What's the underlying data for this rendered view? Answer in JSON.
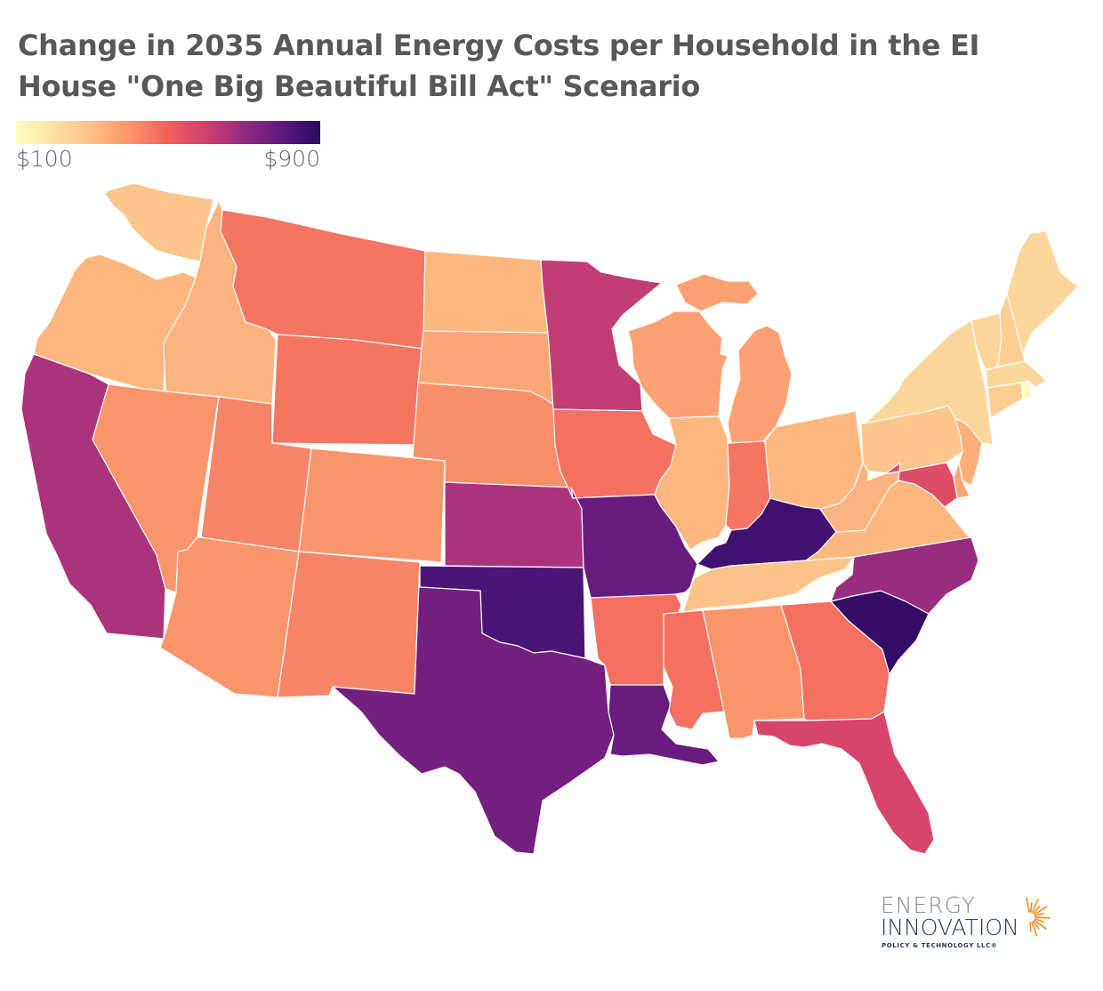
{
  "title": {
    "line1": "Change in 2035 Annual Energy Costs per Household in the EI",
    "line2": "House \"One Big Beautiful Bill Act\" Scenario"
  },
  "legend": {
    "min_label": "$100",
    "max_label": "$900",
    "min_value": 100,
    "max_value": 900,
    "colors": [
      "#fcfdbf",
      "#fec287",
      "#fb9b6d",
      "#f1605d",
      "#b5367a",
      "#8c2981",
      "#651a80",
      "#2b0b5b"
    ]
  },
  "logo": {
    "line1": "ENERGY",
    "line2": "INNOVATION",
    "line3": "POLICY & TECHNOLOGY LLC®",
    "accent_color": "#f08a24"
  },
  "chart_data": {
    "type": "choropleth",
    "title": "Change in 2035 Annual Energy Costs per Household in the EI House \"One Big Beautiful Bill Act\" Scenario",
    "units": "USD per household per year",
    "color_scale": {
      "min": 100,
      "max": 900,
      "scheme": "magma (reversed)"
    },
    "values_note": "Approximate values estimated from fill color",
    "states": [
      {
        "code": "WA",
        "value": 280
      },
      {
        "code": "OR",
        "value": 320
      },
      {
        "code": "CA",
        "value": 660
      },
      {
        "code": "ID",
        "value": 330
      },
      {
        "code": "NV",
        "value": 400
      },
      {
        "code": "AZ",
        "value": 400
      },
      {
        "code": "MT",
        "value": 460
      },
      {
        "code": "WY",
        "value": 460
      },
      {
        "code": "UT",
        "value": 430
      },
      {
        "code": "CO",
        "value": 400
      },
      {
        "code": "NM",
        "value": 430
      },
      {
        "code": "ND",
        "value": 320
      },
      {
        "code": "SD",
        "value": 360
      },
      {
        "code": "NE",
        "value": 410
      },
      {
        "code": "KS",
        "value": 660
      },
      {
        "code": "OK",
        "value": 830
      },
      {
        "code": "TX",
        "value": 760
      },
      {
        "code": "MN",
        "value": 620
      },
      {
        "code": "IA",
        "value": 470
      },
      {
        "code": "MO",
        "value": 780
      },
      {
        "code": "AR",
        "value": 470
      },
      {
        "code": "LA",
        "value": 780
      },
      {
        "code": "WI",
        "value": 370
      },
      {
        "code": "IL",
        "value": 320
      },
      {
        "code": "MI",
        "value": 370
      },
      {
        "code": "IN",
        "value": 460
      },
      {
        "code": "OH",
        "value": 320
      },
      {
        "code": "KY",
        "value": 850
      },
      {
        "code": "TN",
        "value": 290
      },
      {
        "code": "MS",
        "value": 470
      },
      {
        "code": "AL",
        "value": 400
      },
      {
        "code": "GA",
        "value": 470
      },
      {
        "code": "FL",
        "value": 580
      },
      {
        "code": "SC",
        "value": 880
      },
      {
        "code": "NC",
        "value": 690
      },
      {
        "code": "VA",
        "value": 320
      },
      {
        "code": "WV",
        "value": 330
      },
      {
        "code": "PA",
        "value": 280
      },
      {
        "code": "NY",
        "value": 230
      },
      {
        "code": "NJ",
        "value": 340
      },
      {
        "code": "DE",
        "value": 360
      },
      {
        "code": "MD",
        "value": 560
      },
      {
        "code": "CT",
        "value": 260
      },
      {
        "code": "RI",
        "value": 110
      },
      {
        "code": "MA",
        "value": 230
      },
      {
        "code": "VT",
        "value": 230
      },
      {
        "code": "NH",
        "value": 260
      },
      {
        "code": "ME",
        "value": 230
      }
    ]
  }
}
